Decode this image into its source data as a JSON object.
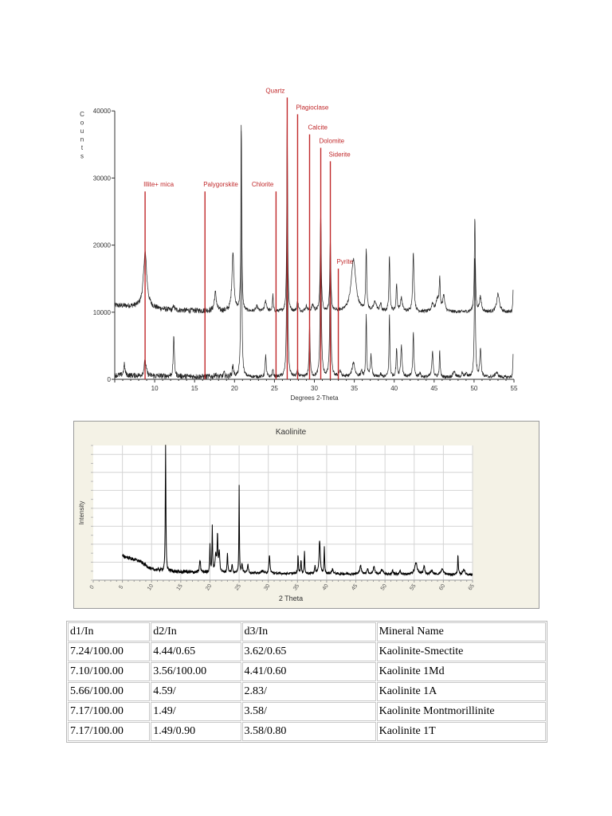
{
  "chart_data": [
    {
      "type": "line",
      "title": "",
      "xlabel": "Degrees 2-Theta",
      "ylabel": "Counts",
      "xlim": [
        5,
        55
      ],
      "ylim": [
        0,
        40000
      ],
      "xticks": [
        10,
        15,
        20,
        25,
        30,
        35,
        40,
        45,
        50,
        55
      ],
      "yticks": [
        0,
        10000,
        20000,
        30000,
        40000
      ],
      "peak_fields": [
        "two_theta",
        "counts",
        "fwhm"
      ],
      "series": [
        {
          "color": "#222222",
          "baseline": [
            [
              5,
              11000
            ],
            [
              8,
              10800
            ],
            [
              12,
              10300
            ],
            [
              20,
              10100
            ],
            [
              55,
              10000
            ]
          ],
          "peaks": [
            [
              8.8,
              19000,
              0.5
            ],
            [
              12.4,
              11000,
              0.15
            ],
            [
              17.6,
              12900,
              0.3
            ],
            [
              19.8,
              18800,
              0.3
            ],
            [
              20.85,
              38300,
              0.12
            ],
            [
              22.8,
              10800,
              0.3
            ],
            [
              23.9,
              11600,
              0.3
            ],
            [
              24.8,
              12500,
              0.12
            ],
            [
              26.6,
              40000,
              0.12
            ],
            [
              27.9,
              11600,
              0.2
            ],
            [
              29.0,
              10800,
              0.3
            ],
            [
              29.8,
              11000,
              0.3
            ],
            [
              30.8,
              25000,
              0.15
            ],
            [
              32.0,
              20800,
              0.15
            ],
            [
              34.9,
              17800,
              0.7
            ],
            [
              36.5,
              19300,
              0.15
            ],
            [
              37.6,
              11400,
              0.4
            ],
            [
              38.3,
              11200,
              0.2
            ],
            [
              39.4,
              18200,
              0.15
            ],
            [
              40.3,
              14200,
              0.15
            ],
            [
              40.9,
              12000,
              0.3
            ],
            [
              42.4,
              18700,
              0.2
            ],
            [
              44.8,
              11200,
              0.3
            ],
            [
              45.4,
              11800,
              0.4
            ],
            [
              45.7,
              14700,
              0.15
            ],
            [
              46.2,
              12400,
              0.3
            ],
            [
              50.1,
              24000,
              0.15
            ],
            [
              50.8,
              12100,
              0.3
            ],
            [
              53.0,
              12700,
              0.4
            ],
            [
              54.9,
              13700,
              0.1
            ]
          ]
        },
        {
          "color": "#222222",
          "baseline": [
            [
              5,
              600
            ],
            [
              9,
              500
            ],
            [
              20,
              350
            ],
            [
              55,
              300
            ]
          ],
          "peaks": [
            [
              6.2,
              2200,
              0.2
            ],
            [
              8.8,
              2800,
              0.3
            ],
            [
              12.4,
              6700,
              0.15
            ],
            [
              17.6,
              800,
              0.2
            ],
            [
              18.7,
              900,
              0.2
            ],
            [
              19.8,
              2000,
              0.2
            ],
            [
              20.85,
              38000,
              0.12
            ],
            [
              23.9,
              3700,
              0.15
            ],
            [
              24.8,
              1400,
              0.15
            ],
            [
              26.6,
              40000,
              0.12
            ],
            [
              27.9,
              1200,
              0.2
            ],
            [
              29.4,
              8000,
              0.15
            ],
            [
              30.8,
              25000,
              0.15
            ],
            [
              32.0,
              20000,
              0.15
            ],
            [
              33.2,
              1200,
              0.3
            ],
            [
              34.9,
              2500,
              0.4
            ],
            [
              35.9,
              1200,
              0.2
            ],
            [
              36.5,
              9800,
              0.12
            ],
            [
              37.1,
              3500,
              0.2
            ],
            [
              38.3,
              700,
              0.2
            ],
            [
              39.4,
              9800,
              0.12
            ],
            [
              40.3,
              4500,
              0.15
            ],
            [
              40.9,
              5000,
              0.2
            ],
            [
              42.4,
              7000,
              0.15
            ],
            [
              43.2,
              1000,
              0.2
            ],
            [
              44.8,
              4000,
              0.2
            ],
            [
              45.7,
              4200,
              0.12
            ],
            [
              47.5,
              1200,
              0.3
            ],
            [
              48.5,
              900,
              0.2
            ],
            [
              49.0,
              900,
              0.2
            ],
            [
              50.1,
              18000,
              0.15
            ],
            [
              50.8,
              4500,
              0.2
            ],
            [
              52.8,
              1000,
              0.4
            ],
            [
              54.9,
              3700,
              0.1
            ]
          ]
        }
      ],
      "reference_lines": {
        "color": "#c0282a",
        "items": [
          {
            "label": "Illite+ mica",
            "two_theta": 8.8,
            "counts": 28000
          },
          {
            "label": "Palygorskite",
            "two_theta": 16.3,
            "counts": 28000
          },
          {
            "label": "Chlorite",
            "two_theta": 25.2,
            "counts": 28000
          },
          {
            "label": "Quartz",
            "two_theta": 26.6,
            "counts": 42000
          },
          {
            "label": "Plagioclase",
            "two_theta": 27.9,
            "counts": 39500
          },
          {
            "label": "Calcite",
            "two_theta": 29.4,
            "counts": 36500
          },
          {
            "label": "Dolomite",
            "two_theta": 30.8,
            "counts": 34500
          },
          {
            "label": "Siderite",
            "two_theta": 32.0,
            "counts": 32500
          },
          {
            "label": "Pyrite",
            "two_theta": 33.0,
            "counts": 16500
          }
        ]
      }
    },
    {
      "type": "line",
      "title": "Kaolinite",
      "xlabel": "2 Theta",
      "ylabel": "Intensity",
      "xlim": [
        0,
        65
      ],
      "ylim": [
        0,
        100
      ],
      "xticks": [
        "0",
        "5",
        "10",
        "15",
        "20",
        "25",
        "30",
        "35",
        "40",
        "45",
        "50",
        "55",
        "60",
        "65"
      ],
      "grid": true,
      "peak_fields": [
        "two_theta",
        "intensity",
        "fwhm"
      ],
      "series": [
        {
          "color": "#000000",
          "baseline": [
            [
              5,
              18
            ],
            [
              8,
              14
            ],
            [
              10,
              8
            ],
            [
              15,
              6
            ],
            [
              30,
              5
            ],
            [
              65,
              4
            ]
          ],
          "peaks": [
            [
              12.4,
              100,
              0.12
            ],
            [
              15.7,
              7,
              0.2
            ],
            [
              18.3,
              15,
              0.2
            ],
            [
              20.0,
              27,
              0.12
            ],
            [
              20.4,
              39,
              0.12
            ],
            [
              21.0,
              18,
              0.3
            ],
            [
              21.3,
              32,
              0.15
            ],
            [
              21.6,
              20,
              0.2
            ],
            [
              23.0,
              20,
              0.15
            ],
            [
              23.8,
              11,
              0.2
            ],
            [
              25.0,
              71,
              0.1
            ],
            [
              25.5,
              12,
              0.2
            ],
            [
              26.5,
              12,
              0.2
            ],
            [
              29.0,
              7,
              0.4
            ],
            [
              30.2,
              19,
              0.2
            ],
            [
              35.1,
              19,
              0.12
            ],
            [
              35.6,
              15,
              0.15
            ],
            [
              36.2,
              21,
              0.12
            ],
            [
              38.0,
              11,
              0.15
            ],
            [
              38.8,
              29,
              0.25
            ],
            [
              39.6,
              24,
              0.12
            ],
            [
              41.0,
              8,
              0.3
            ],
            [
              45.8,
              11,
              0.3
            ],
            [
              47.0,
              8,
              0.3
            ],
            [
              48.1,
              10,
              0.3
            ],
            [
              49.5,
              8,
              0.4
            ],
            [
              51.3,
              8,
              0.15
            ],
            [
              52.6,
              8,
              0.15
            ],
            [
              55.3,
              13,
              0.5
            ],
            [
              56.7,
              10,
              0.3
            ],
            [
              58.0,
              7,
              0.4
            ],
            [
              59.8,
              8,
              0.5
            ],
            [
              62.5,
              18,
              0.15
            ],
            [
              63.5,
              8,
              0.4
            ]
          ]
        }
      ]
    }
  ],
  "table": {
    "headers": [
      "d1/In",
      "d2/In",
      "d3/In",
      "Mineral Name"
    ],
    "rows": [
      [
        "7.24/100.00",
        "4.44/0.65",
        "3.62/0.65",
        "Kaolinite-Smectite"
      ],
      [
        "7.10/100.00",
        "3.56/100.00",
        "4.41/0.60",
        "Kaolinite 1Md"
      ],
      [
        "5.66/100.00",
        "4.59/",
        "2.83/",
        "Kaolinite 1A"
      ],
      [
        "7.17/100.00",
        "1.49/",
        "3.58/",
        "Kaolinite Montmorillinite"
      ],
      [
        "7.17/100.00",
        "1.49/0.90",
        "3.58/0.80",
        "Kaolinite 1T"
      ]
    ]
  }
}
